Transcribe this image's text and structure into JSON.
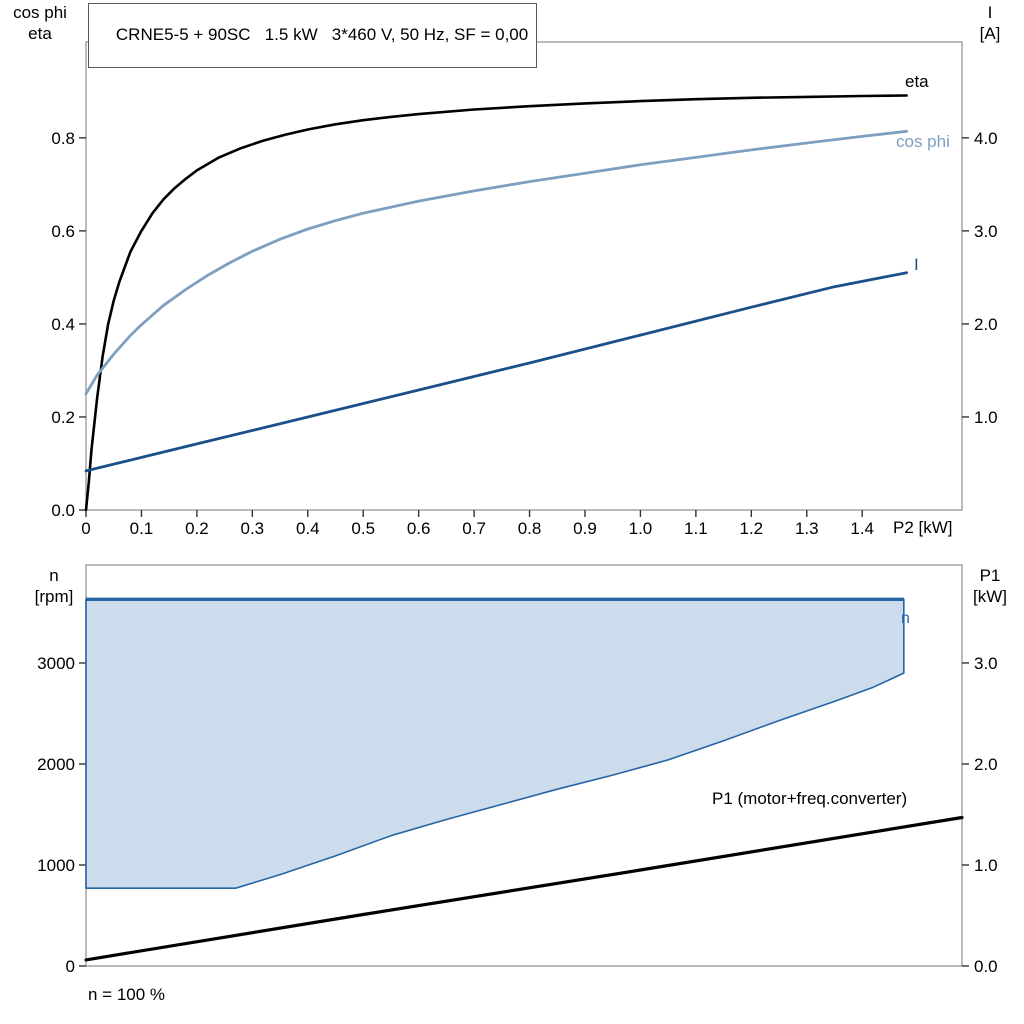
{
  "title": "CRNE5-5 + 90SC   1.5 kW   3*460 V, 50 Hz, SF = 0,00",
  "colors": {
    "eta": "#000000",
    "cos_phi": "#7f9fc0",
    "current": "#1b4f8a",
    "n_stroke": "#2565a4",
    "n_fill": "#ccdcec",
    "p1": "#000000",
    "frame": "#9c9c9c",
    "tick": "#333333",
    "text": "#000000"
  },
  "labels": {
    "top_left_1": "cos phi",
    "top_left_2": "eta",
    "top_right_1": "I",
    "top_right_2": "[A]",
    "bottom_left_1": "n",
    "bottom_left_2": "[rpm]",
    "bottom_right_1": "P1",
    "bottom_right_2": "[kW]"
  },
  "chart_data": [
    {
      "id": "top",
      "type": "line",
      "title": "CRNE5-5 + 90SC   1.5 kW   3*460 V, 50 Hz, SF = 0,00",
      "x_axis": {
        "label": "P2 [kW]",
        "range": [
          0,
          1.58
        ],
        "ticks": [
          0,
          0.1,
          0.2,
          0.3,
          0.4,
          0.5,
          0.6,
          0.7,
          0.8,
          0.9,
          1.0,
          1.1,
          1.2,
          1.3,
          1.4
        ],
        "tick_labels": [
          "0",
          "0.1",
          "0.2",
          "0.3",
          "0.4",
          "0.5",
          "0.6",
          "0.7",
          "0.8",
          "0.9",
          "1.0",
          "1.1",
          "1.2",
          "1.3",
          "1.4"
        ]
      },
      "y_left": {
        "label": "cos phi / eta",
        "range": [
          0,
          1.006
        ],
        "ticks": [
          0.0,
          0.2,
          0.4,
          0.6,
          0.8
        ],
        "tick_labels": [
          "0.0",
          "0.2",
          "0.4",
          "0.6",
          "0.8"
        ]
      },
      "y_right": {
        "label": "I [A]",
        "range": [
          0,
          5.03
        ],
        "ticks": [
          1.0,
          2.0,
          3.0,
          4.0
        ],
        "tick_labels": [
          "1.0",
          "2.0",
          "3.0",
          "4.0"
        ]
      },
      "grid": false,
      "series": [
        {
          "name": "eta",
          "axis": "left",
          "color_key": "eta",
          "stroke_width": 2.6,
          "points": [
            [
              0,
              0
            ],
            [
              0.005,
              0.06
            ],
            [
              0.01,
              0.13
            ],
            [
              0.02,
              0.24
            ],
            [
              0.03,
              0.33
            ],
            [
              0.04,
              0.4
            ],
            [
              0.05,
              0.45
            ],
            [
              0.06,
              0.49
            ],
            [
              0.08,
              0.555
            ],
            [
              0.1,
              0.6
            ],
            [
              0.12,
              0.638
            ],
            [
              0.14,
              0.668
            ],
            [
              0.16,
              0.692
            ],
            [
              0.18,
              0.712
            ],
            [
              0.2,
              0.73
            ],
            [
              0.24,
              0.758
            ],
            [
              0.28,
              0.778
            ],
            [
              0.32,
              0.794
            ],
            [
              0.36,
              0.807
            ],
            [
              0.4,
              0.818
            ],
            [
              0.45,
              0.829
            ],
            [
              0.5,
              0.838
            ],
            [
              0.55,
              0.845
            ],
            [
              0.6,
              0.851
            ],
            [
              0.7,
              0.861
            ],
            [
              0.8,
              0.868
            ],
            [
              0.9,
              0.874
            ],
            [
              1.0,
              0.879
            ],
            [
              1.1,
              0.883
            ],
            [
              1.2,
              0.886
            ],
            [
              1.3,
              0.888
            ],
            [
              1.4,
              0.89
            ],
            [
              1.48,
              0.891
            ]
          ]
        },
        {
          "name": "cos phi",
          "axis": "left",
          "color_key": "cos_phi",
          "stroke_width": 2.8,
          "points": [
            [
              0,
              0.25
            ],
            [
              0.02,
              0.29
            ],
            [
              0.05,
              0.335
            ],
            [
              0.08,
              0.375
            ],
            [
              0.1,
              0.398
            ],
            [
              0.14,
              0.44
            ],
            [
              0.18,
              0.474
            ],
            [
              0.22,
              0.505
            ],
            [
              0.26,
              0.532
            ],
            [
              0.3,
              0.556
            ],
            [
              0.35,
              0.582
            ],
            [
              0.4,
              0.604
            ],
            [
              0.45,
              0.622
            ],
            [
              0.5,
              0.638
            ],
            [
              0.6,
              0.664
            ],
            [
              0.7,
              0.686
            ],
            [
              0.8,
              0.706
            ],
            [
              0.9,
              0.724
            ],
            [
              1.0,
              0.742
            ],
            [
              1.1,
              0.758
            ],
            [
              1.2,
              0.774
            ],
            [
              1.3,
              0.789
            ],
            [
              1.4,
              0.803
            ],
            [
              1.48,
              0.814
            ]
          ]
        },
        {
          "name": "I",
          "axis": "right",
          "color_key": "current",
          "stroke_width": 2.8,
          "points": [
            [
              0,
              0.42
            ],
            [
              0.2,
              0.71
            ],
            [
              0.4,
              1.0
            ],
            [
              0.6,
              1.29
            ],
            [
              0.8,
              1.58
            ],
            [
              1.0,
              1.88
            ],
            [
              1.2,
              2.18
            ],
            [
              1.35,
              2.4
            ],
            [
              1.48,
              2.55
            ]
          ]
        }
      ]
    },
    {
      "id": "bottom",
      "type": "line",
      "title": "",
      "x_axis": {
        "label": "",
        "range": [
          0,
          1.58
        ],
        "ticks": [],
        "tick_labels": []
      },
      "y_left": {
        "label": "n [rpm]",
        "range": [
          0,
          3970
        ],
        "ticks": [
          0,
          1000,
          2000,
          3000
        ],
        "tick_labels": [
          "0",
          "1000",
          "2000",
          "3000"
        ]
      },
      "y_right": {
        "label": "P1 [kW]",
        "range": [
          0,
          3.97
        ],
        "ticks": [
          0.0,
          1.0,
          2.0,
          3.0
        ],
        "tick_labels": [
          "0.0",
          "1.0",
          "2.0",
          "3.0"
        ]
      },
      "grid": false,
      "annotation": "n = 100 %",
      "series": [
        {
          "name": "n",
          "axis": "left",
          "region": true,
          "color_key": "n_stroke",
          "fill_key": "n_fill",
          "stroke_width": 1.6,
          "top_stroke_width": 3.4,
          "points_upper": [
            [
              0,
              3630
            ],
            [
              1.475,
              3630
            ]
          ],
          "points_lower": [
            [
              0,
              770
            ],
            [
              0.27,
              770
            ],
            [
              0.35,
              905
            ],
            [
              0.45,
              1090
            ],
            [
              0.55,
              1290
            ],
            [
              0.65,
              1450
            ],
            [
              0.75,
              1600
            ],
            [
              0.85,
              1750
            ],
            [
              0.95,
              1890
            ],
            [
              1.05,
              2040
            ],
            [
              1.15,
              2230
            ],
            [
              1.25,
              2430
            ],
            [
              1.35,
              2620
            ],
            [
              1.42,
              2760
            ],
            [
              1.475,
              2900
            ]
          ]
        },
        {
          "name": "P1 (motor+freq.converter)",
          "axis": "right",
          "color_key": "p1",
          "stroke_width": 3.2,
          "points": [
            [
              0,
              0.06
            ],
            [
              0.5,
              0.51
            ],
            [
              1.0,
              0.95
            ],
            [
              1.58,
              1.47
            ]
          ]
        }
      ]
    }
  ]
}
